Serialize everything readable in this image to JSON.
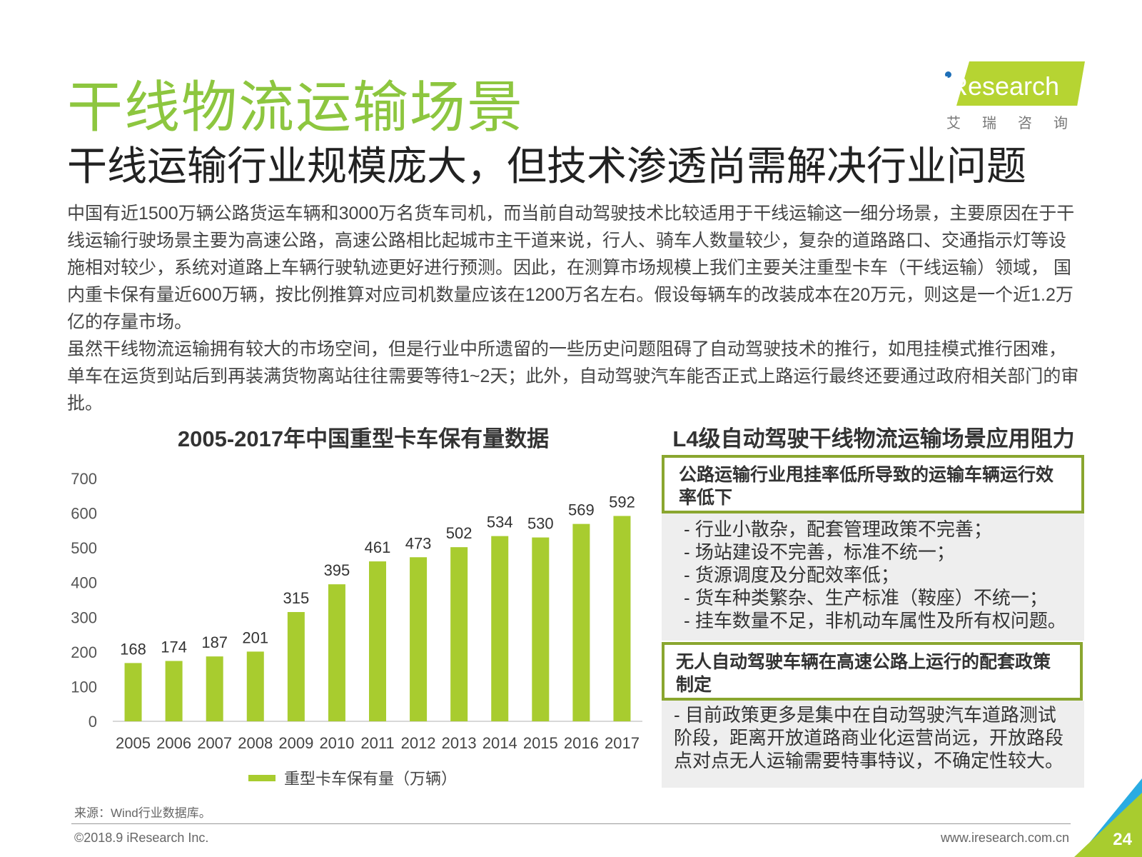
{
  "header": {
    "title": "干线物流运输场景",
    "subtitle": "干线运输行业规模庞大，但技术渗透尚需解决行业问题"
  },
  "logo": {
    "text": "iResearch",
    "subtext": "艾瑞咨询"
  },
  "body": {
    "paragraphs": [
      "中国有近1500万辆公路货运车辆和3000万名货车司机，而当前自动驾驶技术比较适用于干线运输这一细分场景，主要原因在于干线运输行驶场景主要为高速公路，高速公路相比起城市主干道来说，行人、骑车人数量较少，复杂的道路路口、交通指示灯等设施相对较少，系统对道路上车辆行驶轨迹更好进行预测。因此，在测算市场规模上我们主要关注重型卡车（干线运输）领域， 国内重卡保有量近600万辆，按比例推算对应司机数量应该在1200万名左右。假设每辆车的改装成本在20万元，则这是一个近1.2万亿的存量市场。",
      "虽然干线物流运输拥有较大的市场空间，但是行业中所遗留的一些历史问题阻碍了自动驾驶技术的推行，如甩挂模式推行困难，单车在运货到站后到再装满货物离站往往需要等待1~2天；此外，自动驾驶汽车能否正式上路运行最终还要通过政府相关部门的审批。"
    ]
  },
  "chart_data": {
    "type": "bar",
    "title": "2005-2017年中国重型卡车保有量数据",
    "categories": [
      "2005",
      "2006",
      "2007",
      "2008",
      "2009",
      "2010",
      "2011",
      "2012",
      "2013",
      "2014",
      "2015",
      "2016",
      "2017"
    ],
    "series": [
      {
        "name": "重型卡车保有量（万辆）",
        "values": [
          168,
          174,
          187,
          201,
          315,
          395,
          461,
          473,
          502,
          534,
          530,
          569,
          592
        ]
      }
    ],
    "ylim": [
      0,
      700
    ],
    "yticks": [
      0,
      100,
      200,
      300,
      400,
      500,
      600,
      700
    ],
    "grid": false,
    "legend": "bottom",
    "data_labels": true,
    "color": "#a8cc2f"
  },
  "panel": {
    "title": "L4级自动驾驶干线物流运输场景应用阻力",
    "box1": {
      "heading": "公路运输行业甩挂率低所导致的运输车辆运行效率低下",
      "items": [
        "- 行业小散杂，配套管理政策不完善；",
        "- 场站建设不完善，标准不统一；",
        "- 货源调度及分配效率低；",
        "- 货车种类繁杂、生产标准（鞍座）不统一；",
        "- 挂车数量不足，非机动车属性及所有权问题。"
      ]
    },
    "box2": {
      "heading": "无人自动驾驶车辆在高速公路上运行的配套政策制定",
      "text": " - 目前政策更多是集中在自动驾驶汽车道路测试阶段，距离开放道路商业化运营尚远，开放路段点对点无人运输需要特事特议，不确定性较大。"
    }
  },
  "footer": {
    "source": "来源：Wind行业数据库。",
    "copyright": "©2018.9 iResearch Inc.",
    "website": "www.iresearch.com.cn",
    "page": "24"
  }
}
